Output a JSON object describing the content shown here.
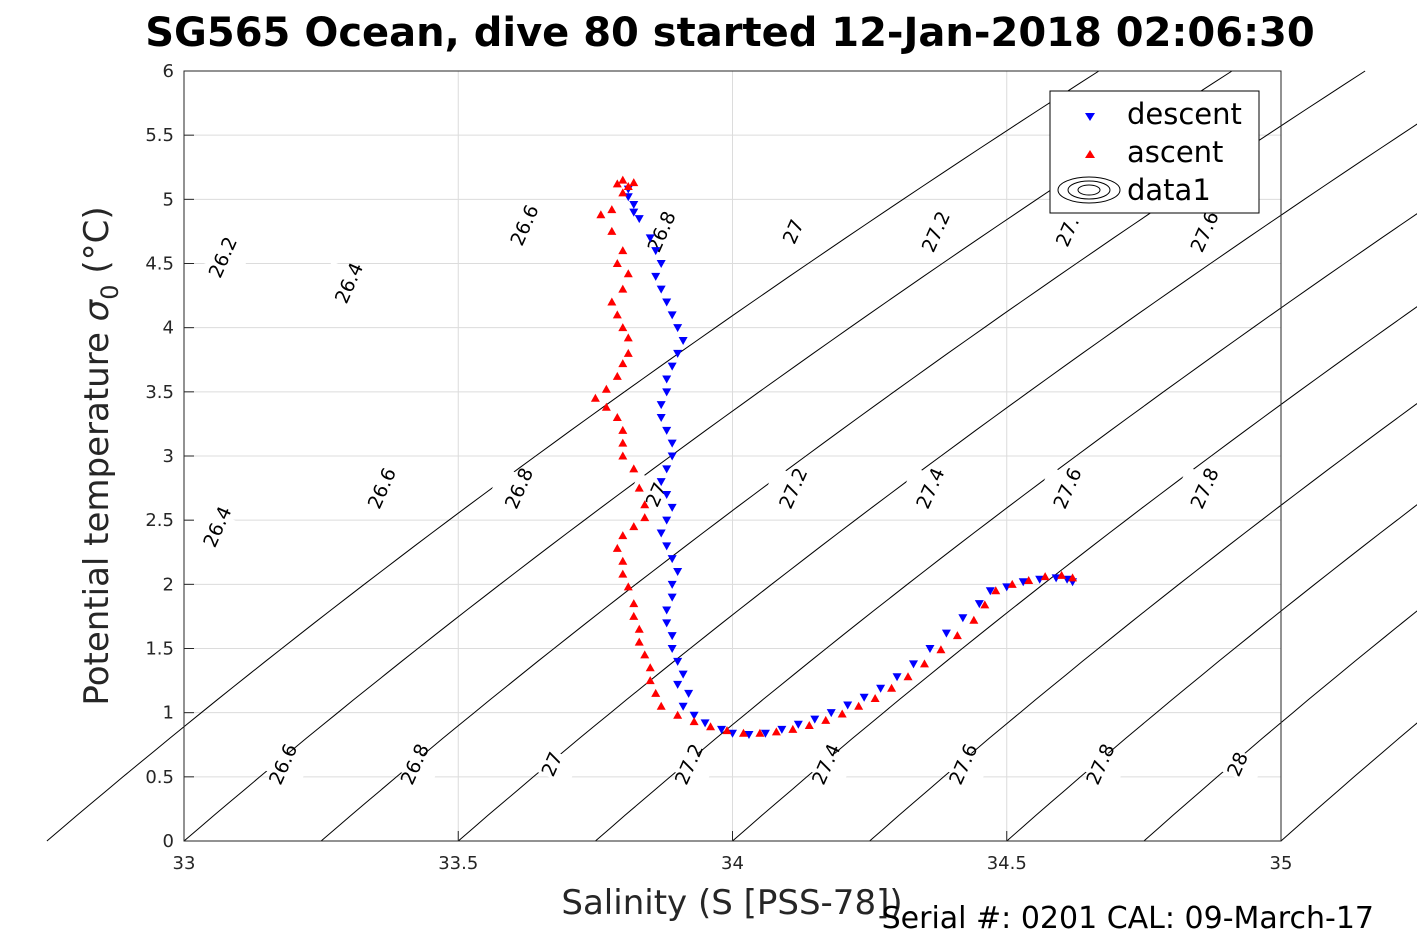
{
  "chart_data": {
    "type": "scatter",
    "title": "SG565 Ocean, dive 80 started 12-Jan-2018 02:06:30",
    "xlabel": "Salinity (S [PSS-78])",
    "ylabel_main": "Potential temperature ",
    "ylabel_sigma": "σ",
    "ylabel_sub": "0",
    "ylabel_unit": " (°C)",
    "xlim": [
      33,
      35
    ],
    "ylim": [
      0,
      6
    ],
    "x_ticks": [
      "33",
      "33.5",
      "34",
      "34.5",
      "35"
    ],
    "y_ticks": [
      "0",
      "0.5",
      "1",
      "1.5",
      "2",
      "2.5",
      "3",
      "3.5",
      "4",
      "4.5",
      "5",
      "5.5",
      "6"
    ],
    "grid": true,
    "legend_position": "top-right",
    "legend": [
      "descent",
      "ascent",
      "data1"
    ],
    "series": [
      {
        "name": "descent",
        "color": "#0000ff",
        "marker": "triangle-down",
        "points": [
          [
            33.81,
            5.08
          ],
          [
            33.81,
            5.02
          ],
          [
            33.82,
            4.96
          ],
          [
            33.82,
            4.9
          ],
          [
            33.83,
            4.85
          ],
          [
            33.85,
            4.7
          ],
          [
            33.86,
            4.6
          ],
          [
            33.87,
            4.5
          ],
          [
            33.86,
            4.4
          ],
          [
            33.87,
            4.3
          ],
          [
            33.88,
            4.2
          ],
          [
            33.89,
            4.1
          ],
          [
            33.9,
            4.0
          ],
          [
            33.91,
            3.9
          ],
          [
            33.9,
            3.8
          ],
          [
            33.89,
            3.7
          ],
          [
            33.88,
            3.6
          ],
          [
            33.88,
            3.5
          ],
          [
            33.87,
            3.4
          ],
          [
            33.87,
            3.3
          ],
          [
            33.88,
            3.2
          ],
          [
            33.89,
            3.1
          ],
          [
            33.89,
            3.0
          ],
          [
            33.88,
            2.9
          ],
          [
            33.87,
            2.8
          ],
          [
            33.88,
            2.7
          ],
          [
            33.89,
            2.6
          ],
          [
            33.88,
            2.5
          ],
          [
            33.87,
            2.4
          ],
          [
            33.88,
            2.3
          ],
          [
            33.89,
            2.2
          ],
          [
            33.9,
            2.1
          ],
          [
            33.89,
            2.0
          ],
          [
            33.89,
            1.9
          ],
          [
            33.88,
            1.8
          ],
          [
            33.88,
            1.7
          ],
          [
            33.89,
            1.6
          ],
          [
            33.89,
            1.5
          ],
          [
            33.9,
            1.4
          ],
          [
            33.91,
            1.3
          ],
          [
            33.9,
            1.22
          ],
          [
            33.92,
            1.15
          ],
          [
            33.91,
            1.05
          ],
          [
            33.93,
            0.98
          ],
          [
            33.95,
            0.92
          ],
          [
            33.98,
            0.87
          ],
          [
            34.0,
            0.84
          ],
          [
            34.03,
            0.83
          ],
          [
            34.06,
            0.84
          ],
          [
            34.09,
            0.87
          ],
          [
            34.12,
            0.91
          ],
          [
            34.15,
            0.95
          ],
          [
            34.18,
            1.0
          ],
          [
            34.21,
            1.06
          ],
          [
            34.24,
            1.12
          ],
          [
            34.27,
            1.19
          ],
          [
            34.3,
            1.28
          ],
          [
            34.33,
            1.38
          ],
          [
            34.36,
            1.5
          ],
          [
            34.39,
            1.62
          ],
          [
            34.42,
            1.74
          ],
          [
            34.45,
            1.85
          ],
          [
            34.47,
            1.95
          ],
          [
            34.5,
            1.98
          ],
          [
            34.53,
            2.02
          ],
          [
            34.56,
            2.04
          ],
          [
            34.59,
            2.05
          ],
          [
            34.61,
            2.04
          ],
          [
            34.62,
            2.02
          ]
        ]
      },
      {
        "name": "ascent",
        "color": "#ff0000",
        "marker": "triangle-up",
        "points": [
          [
            33.8,
            5.15
          ],
          [
            33.79,
            5.12
          ],
          [
            33.81,
            5.1
          ],
          [
            33.82,
            5.13
          ],
          [
            33.8,
            5.05
          ],
          [
            33.78,
            4.92
          ],
          [
            33.76,
            4.88
          ],
          [
            33.78,
            4.75
          ],
          [
            33.8,
            4.6
          ],
          [
            33.79,
            4.5
          ],
          [
            33.81,
            4.42
          ],
          [
            33.8,
            4.3
          ],
          [
            33.78,
            4.2
          ],
          [
            33.79,
            4.1
          ],
          [
            33.8,
            4.0
          ],
          [
            33.81,
            3.92
          ],
          [
            33.81,
            3.8
          ],
          [
            33.8,
            3.72
          ],
          [
            33.79,
            3.62
          ],
          [
            33.77,
            3.52
          ],
          [
            33.75,
            3.45
          ],
          [
            33.77,
            3.38
          ],
          [
            33.79,
            3.3
          ],
          [
            33.8,
            3.2
          ],
          [
            33.8,
            3.1
          ],
          [
            33.8,
            3.0
          ],
          [
            33.82,
            2.9
          ],
          [
            33.83,
            2.75
          ],
          [
            33.84,
            2.62
          ],
          [
            33.84,
            2.52
          ],
          [
            33.82,
            2.45
          ],
          [
            33.8,
            2.38
          ],
          [
            33.79,
            2.28
          ],
          [
            33.8,
            2.18
          ],
          [
            33.8,
            2.08
          ],
          [
            33.81,
            1.98
          ],
          [
            33.82,
            1.85
          ],
          [
            33.82,
            1.75
          ],
          [
            33.83,
            1.65
          ],
          [
            33.83,
            1.55
          ],
          [
            33.84,
            1.45
          ],
          [
            33.85,
            1.35
          ],
          [
            33.85,
            1.25
          ],
          [
            33.86,
            1.15
          ],
          [
            33.87,
            1.05
          ],
          [
            33.9,
            0.98
          ],
          [
            33.93,
            0.93
          ],
          [
            33.96,
            0.89
          ],
          [
            33.99,
            0.86
          ],
          [
            34.02,
            0.84
          ],
          [
            34.05,
            0.84
          ],
          [
            34.08,
            0.85
          ],
          [
            34.11,
            0.87
          ],
          [
            34.14,
            0.9
          ],
          [
            34.17,
            0.94
          ],
          [
            34.2,
            0.99
          ],
          [
            34.23,
            1.05
          ],
          [
            34.26,
            1.11
          ],
          [
            34.29,
            1.19
          ],
          [
            34.32,
            1.28
          ],
          [
            34.35,
            1.38
          ],
          [
            34.38,
            1.49
          ],
          [
            34.41,
            1.6
          ],
          [
            34.44,
            1.72
          ],
          [
            34.46,
            1.84
          ],
          [
            34.48,
            1.95
          ],
          [
            34.51,
            2.0
          ],
          [
            34.54,
            2.03
          ],
          [
            34.57,
            2.06
          ],
          [
            34.6,
            2.07
          ],
          [
            34.62,
            2.05
          ]
        ]
      }
    ],
    "contour_levels": [
      "26.2",
      "26.4",
      "26.6",
      "26.8",
      "27",
      "27.2",
      "27.4",
      "27.6",
      "27.8",
      "28"
    ],
    "contour_labels": [
      {
        "text": "26.2",
        "s": 33.07,
        "t": 4.55
      },
      {
        "text": "26.6",
        "s": 33.62,
        "t": 4.8
      },
      {
        "text": "26.8",
        "s": 33.87,
        "t": 4.75
      },
      {
        "text": "27",
        "s": 34.11,
        "t": 4.75
      },
      {
        "text": "27.2",
        "s": 34.37,
        "t": 4.75
      },
      {
        "text": "27.",
        "s": 34.61,
        "t": 4.75
      },
      {
        "text": "27.6",
        "s": 34.86,
        "t": 4.75
      },
      {
        "text": "26.4",
        "s": 33.3,
        "t": 4.35
      },
      {
        "text": "26.6",
        "s": 33.36,
        "t": 2.75
      },
      {
        "text": "26.8",
        "s": 33.61,
        "t": 2.75
      },
      {
        "text": "27",
        "s": 33.86,
        "t": 2.7
      },
      {
        "text": "27.2",
        "s": 34.11,
        "t": 2.75
      },
      {
        "text": "27.4",
        "s": 34.36,
        "t": 2.75
      },
      {
        "text": "27.6",
        "s": 34.61,
        "t": 2.75
      },
      {
        "text": "27.8",
        "s": 34.86,
        "t": 2.75
      },
      {
        "text": "26.4",
        "s": 33.06,
        "t": 2.45
      },
      {
        "text": "26.6",
        "s": 33.18,
        "t": 0.6
      },
      {
        "text": "26.8",
        "s": 33.42,
        "t": 0.6
      },
      {
        "text": "27",
        "s": 33.67,
        "t": 0.6
      },
      {
        "text": "27.2",
        "s": 33.92,
        "t": 0.6
      },
      {
        "text": "27.4",
        "s": 34.17,
        "t": 0.6
      },
      {
        "text": "27.6",
        "s": 34.42,
        "t": 0.6
      },
      {
        "text": "27.8",
        "s": 34.67,
        "t": 0.6
      },
      {
        "text": "28",
        "s": 34.92,
        "t": 0.6
      }
    ]
  },
  "footer": "Serial #: 0201  CAL: 09-March-17"
}
